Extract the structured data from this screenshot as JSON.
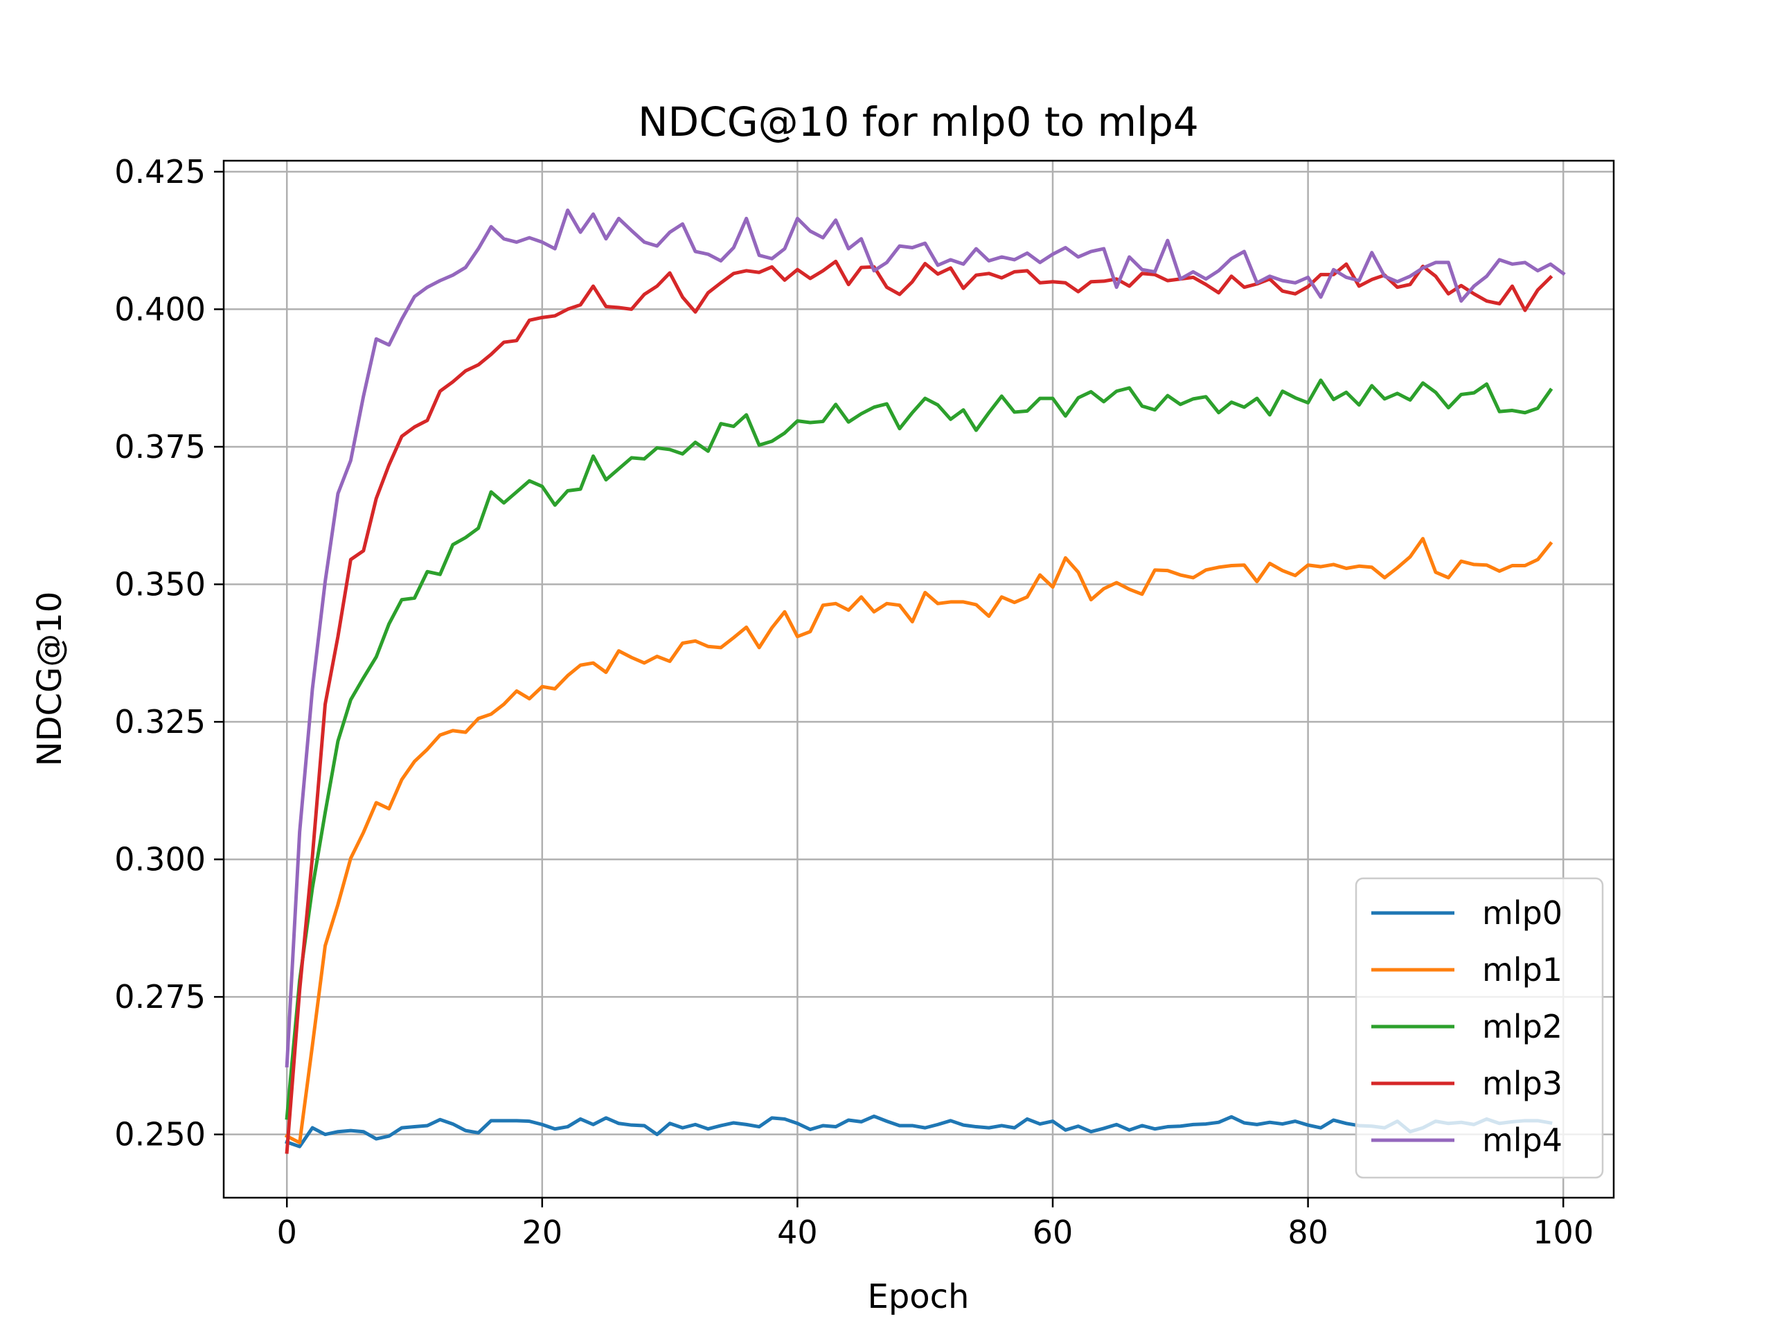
{
  "chart_data": {
    "type": "line",
    "title": "NDCG@10 for mlp0 to mlp4",
    "xlabel": "Epoch",
    "ylabel": "NDCG@10",
    "xlim": [
      -4.95,
      103.95
    ],
    "ylim": [
      0.2385,
      0.427
    ],
    "xticks": [
      0,
      20,
      40,
      60,
      80,
      100
    ],
    "xtick_labels": [
      "0",
      "20",
      "40",
      "60",
      "80",
      "100"
    ],
    "yticks": [
      0.25,
      0.275,
      0.3,
      0.325,
      0.35,
      0.375,
      0.4,
      0.425
    ],
    "ytick_labels": [
      "0.250",
      "0.275",
      "0.300",
      "0.325",
      "0.350",
      "0.375",
      "0.400",
      "0.425"
    ],
    "grid": true,
    "legend_position": "lower-right",
    "series": [
      {
        "name": "mlp0",
        "color": "#1f77b4",
        "values": [
          0.2486,
          0.2478,
          0.2512,
          0.25,
          0.2505,
          0.2507,
          0.2505,
          0.2492,
          0.2497,
          0.2512,
          0.2514,
          0.2516,
          0.2527,
          0.2519,
          0.2507,
          0.2503,
          0.2525,
          0.2525,
          0.2525,
          0.2524,
          0.2518,
          0.251,
          0.2514,
          0.2528,
          0.2518,
          0.253,
          0.252,
          0.2517,
          0.2516,
          0.25,
          0.252,
          0.2512,
          0.2518,
          0.251,
          0.2516,
          0.2521,
          0.2518,
          0.2514,
          0.253,
          0.2528,
          0.252,
          0.2509,
          0.2516,
          0.2514,
          0.2526,
          0.2523,
          0.2533,
          0.2524,
          0.2516,
          0.2516,
          0.2512,
          0.2518,
          0.2525,
          0.2517,
          0.2514,
          0.2512,
          0.2516,
          0.2512,
          0.2528,
          0.2519,
          0.2524,
          0.2508,
          0.2515,
          0.2505,
          0.2511,
          0.2518,
          0.2508,
          0.2516,
          0.251,
          0.2514,
          0.2515,
          0.2518,
          0.2519,
          0.2522,
          0.2532,
          0.2521,
          0.2518,
          0.2522,
          0.2519,
          0.2524,
          0.2517,
          0.2512,
          0.2526,
          0.252,
          0.2516,
          0.2515,
          0.2512,
          0.2524,
          0.2505,
          0.2512,
          0.2524,
          0.252,
          0.2522,
          0.2518,
          0.2528,
          0.252,
          0.2523,
          0.2525,
          0.2525,
          0.2521
        ]
      },
      {
        "name": "mlp1",
        "color": "#ff7f0e",
        "values": [
          0.2497,
          0.2485,
          0.2662,
          0.2843,
          0.2918,
          0.3002,
          0.3049,
          0.3103,
          0.3092,
          0.3145,
          0.3178,
          0.32,
          0.3226,
          0.3234,
          0.3231,
          0.3256,
          0.3264,
          0.3282,
          0.3306,
          0.3292,
          0.3314,
          0.331,
          0.3334,
          0.3353,
          0.3357,
          0.334,
          0.3379,
          0.3367,
          0.3357,
          0.3369,
          0.336,
          0.3393,
          0.3397,
          0.3387,
          0.3385,
          0.3403,
          0.3422,
          0.3385,
          0.3421,
          0.345,
          0.3405,
          0.3414,
          0.3462,
          0.3465,
          0.3453,
          0.3477,
          0.345,
          0.3465,
          0.3462,
          0.3432,
          0.3485,
          0.3465,
          0.3468,
          0.3468,
          0.3463,
          0.3442,
          0.3477,
          0.3467,
          0.3477,
          0.3517,
          0.3495,
          0.3548,
          0.3522,
          0.3472,
          0.3492,
          0.3503,
          0.3491,
          0.3482,
          0.3526,
          0.3525,
          0.3517,
          0.3512,
          0.3526,
          0.3531,
          0.3534,
          0.3535,
          0.3505,
          0.3538,
          0.3525,
          0.3516,
          0.3535,
          0.3532,
          0.3536,
          0.3529,
          0.3533,
          0.3531,
          0.3512,
          0.353,
          0.355,
          0.3583,
          0.3522,
          0.3512,
          0.3542,
          0.3536,
          0.3535,
          0.3524,
          0.3534,
          0.3534,
          0.3545,
          0.3574
        ]
      },
      {
        "name": "mlp2",
        "color": "#2ca02c",
        "values": [
          0.253,
          0.278,
          0.2948,
          0.3085,
          0.3215,
          0.329,
          0.333,
          0.3368,
          0.3428,
          0.3472,
          0.3475,
          0.3523,
          0.3518,
          0.3572,
          0.3585,
          0.3602,
          0.3668,
          0.3648,
          0.3668,
          0.3688,
          0.3678,
          0.3644,
          0.367,
          0.3673,
          0.3733,
          0.369,
          0.371,
          0.373,
          0.3728,
          0.3748,
          0.3745,
          0.3737,
          0.3758,
          0.3742,
          0.3792,
          0.3787,
          0.3808,
          0.3753,
          0.376,
          0.3775,
          0.3797,
          0.3794,
          0.3796,
          0.3827,
          0.3795,
          0.381,
          0.3822,
          0.3828,
          0.3783,
          0.3812,
          0.3838,
          0.3826,
          0.38,
          0.3817,
          0.378,
          0.3812,
          0.3842,
          0.3813,
          0.3815,
          0.3838,
          0.3838,
          0.3806,
          0.3839,
          0.385,
          0.3832,
          0.3851,
          0.3857,
          0.3824,
          0.3817,
          0.3843,
          0.3827,
          0.3837,
          0.3841,
          0.3812,
          0.3831,
          0.3822,
          0.3838,
          0.3808,
          0.3851,
          0.3839,
          0.383,
          0.3871,
          0.3836,
          0.3849,
          0.3826,
          0.3861,
          0.3837,
          0.3847,
          0.3835,
          0.3866,
          0.3849,
          0.3821,
          0.3845,
          0.3848,
          0.3864,
          0.3814,
          0.3816,
          0.3812,
          0.382,
          0.3853
        ]
      },
      {
        "name": "mlp3",
        "color": "#d62728",
        "values": [
          0.2468,
          0.2762,
          0.3005,
          0.3282,
          0.3405,
          0.3545,
          0.3561,
          0.3656,
          0.3717,
          0.3769,
          0.3786,
          0.3798,
          0.3851,
          0.3868,
          0.3888,
          0.3899,
          0.3918,
          0.394,
          0.3943,
          0.398,
          0.3985,
          0.3988,
          0.4,
          0.4008,
          0.4042,
          0.4005,
          0.4003,
          0.4,
          0.4027,
          0.4042,
          0.4066,
          0.4022,
          0.3995,
          0.403,
          0.4048,
          0.4065,
          0.407,
          0.4067,
          0.4077,
          0.4053,
          0.4072,
          0.4056,
          0.407,
          0.4087,
          0.4045,
          0.4076,
          0.4077,
          0.404,
          0.4027,
          0.405,
          0.4083,
          0.4064,
          0.4075,
          0.4038,
          0.4062,
          0.4065,
          0.4057,
          0.4068,
          0.407,
          0.4048,
          0.405,
          0.4048,
          0.4032,
          0.405,
          0.4051,
          0.4055,
          0.4042,
          0.4065,
          0.4063,
          0.4052,
          0.4055,
          0.4058,
          0.4045,
          0.403,
          0.406,
          0.404,
          0.4046,
          0.4055,
          0.4033,
          0.4028,
          0.4041,
          0.4063,
          0.4063,
          0.4082,
          0.4042,
          0.4054,
          0.4062,
          0.404,
          0.4045,
          0.4078,
          0.406,
          0.4028,
          0.4043,
          0.4028,
          0.4015,
          0.401,
          0.4042,
          0.3998,
          0.4035,
          0.4058
        ]
      },
      {
        "name": "mlp4",
        "color": "#9467bd",
        "values": [
          0.2625,
          0.305,
          0.331,
          0.3505,
          0.3665,
          0.3725,
          0.3842,
          0.3946,
          0.3935,
          0.3982,
          0.4023,
          0.404,
          0.4052,
          0.4062,
          0.4076,
          0.411,
          0.415,
          0.4128,
          0.4122,
          0.413,
          0.4122,
          0.411,
          0.418,
          0.414,
          0.4173,
          0.4128,
          0.4165,
          0.4143,
          0.4122,
          0.4115,
          0.414,
          0.4155,
          0.4105,
          0.41,
          0.4088,
          0.4112,
          0.4165,
          0.4098,
          0.4092,
          0.411,
          0.4165,
          0.4142,
          0.413,
          0.4162,
          0.411,
          0.4128,
          0.407,
          0.4085,
          0.4115,
          0.4112,
          0.412,
          0.408,
          0.409,
          0.4082,
          0.411,
          0.4088,
          0.4095,
          0.409,
          0.4102,
          0.4085,
          0.41,
          0.4112,
          0.4095,
          0.4105,
          0.411,
          0.404,
          0.4095,
          0.4072,
          0.4068,
          0.4125,
          0.4055,
          0.4068,
          0.4055,
          0.407,
          0.4092,
          0.4105,
          0.4048,
          0.406,
          0.4052,
          0.4048,
          0.4058,
          0.4022,
          0.4072,
          0.4058,
          0.4052,
          0.4103,
          0.406,
          0.405,
          0.406,
          0.4075,
          0.4085,
          0.4085,
          0.4015,
          0.4042,
          0.406,
          0.409,
          0.4082,
          0.4085,
          0.407,
          0.4082,
          0.4065
        ]
      }
    ]
  }
}
